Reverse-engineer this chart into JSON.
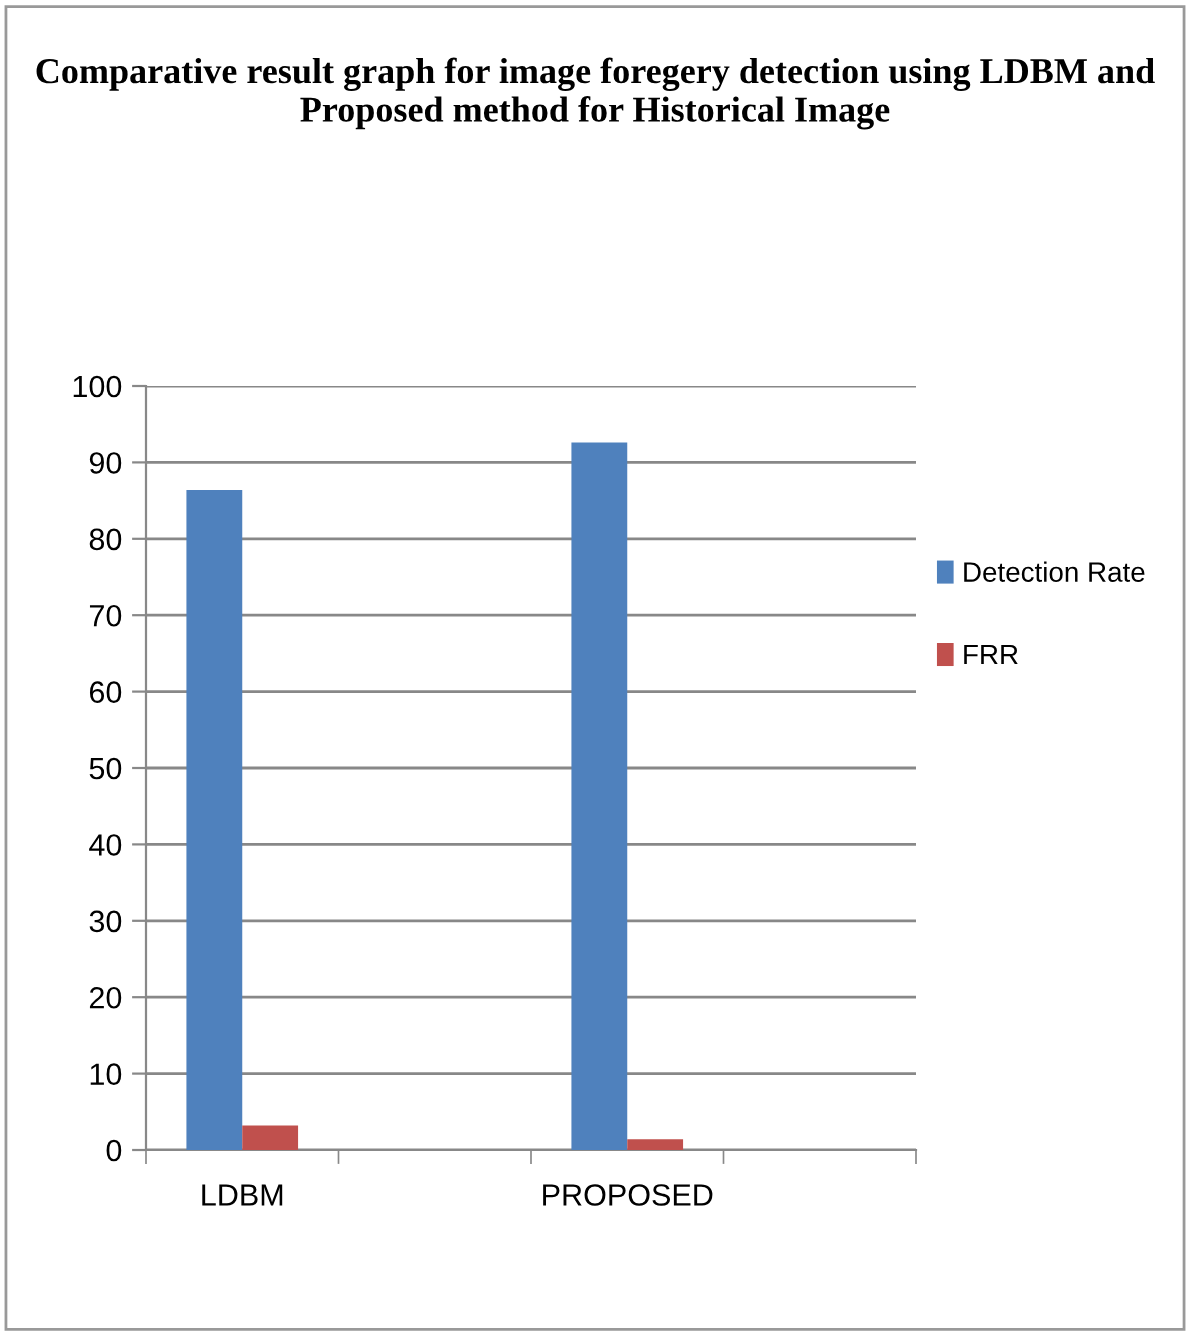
{
  "chart_data": {
    "type": "bar",
    "title": "Comparative result graph for image foregery detection using LDBM and Proposed method for Historical Image",
    "categories": [
      "LDBM",
      null,
      "PROPOSED",
      null
    ],
    "series": [
      {
        "name": "Detection Rate",
        "color": "#4f81bd",
        "values": [
          86.4,
          null,
          92.6,
          null
        ]
      },
      {
        "name": "FRR",
        "color": "#c0504d",
        "values": [
          3.2,
          null,
          1.4,
          null
        ]
      }
    ],
    "ylim": [
      0,
      100
    ],
    "yticks": [
      0,
      10,
      20,
      30,
      40,
      50,
      60,
      70,
      80,
      90,
      100
    ],
    "grid": "y",
    "legend": "right"
  }
}
